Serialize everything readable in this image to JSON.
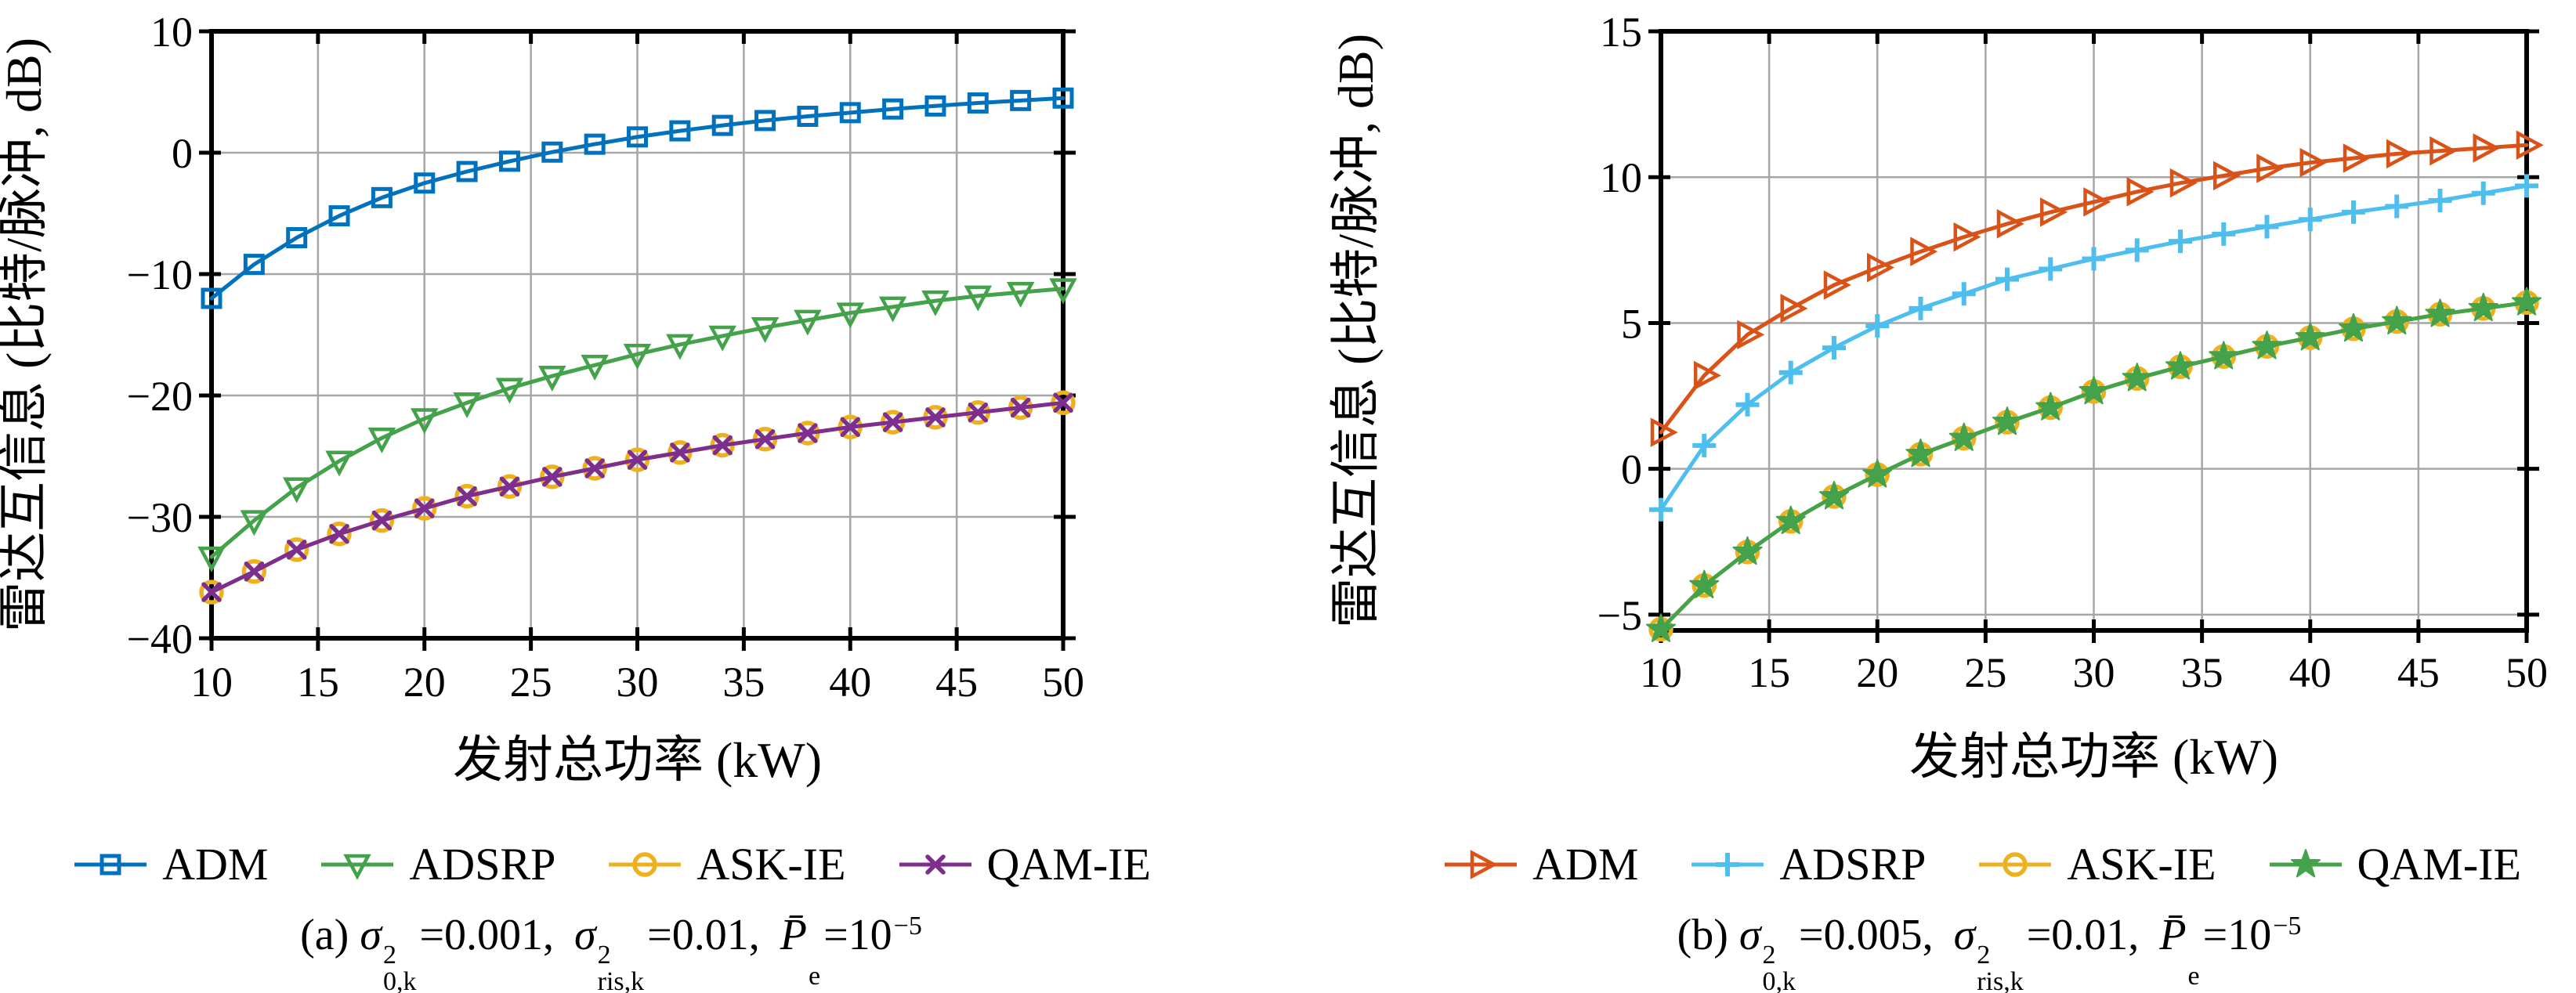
{
  "figure": {
    "background": "#ffffff"
  },
  "axis_labels": {
    "xlabel": "发射总功率 (kW)",
    "ylabel": "雷达互信息 (比特/脉冲, dB)"
  },
  "colors": {
    "grid": "#a6a6a6",
    "border": "#000000",
    "blue": "#0072BD",
    "green": "#44A24B",
    "yellow": "#EDB120",
    "purple": "#7E2F8E",
    "orange": "#D95319",
    "cyan": "#4DBEEE"
  },
  "chart_data": [
    {
      "id": "a",
      "type": "line",
      "title": "",
      "xlabel": "发射总功率 (kW)",
      "ylabel": "雷达互信息 (比特/脉冲, dB)",
      "xlim": [
        10,
        50
      ],
      "ylim": [
        -40,
        10
      ],
      "grid": true,
      "legend_position": "below",
      "xticks": [
        10,
        15,
        20,
        25,
        30,
        35,
        40,
        45,
        50
      ],
      "xtick_labels": [
        "10",
        "15",
        "20",
        "25",
        "30",
        "35",
        "40",
        "45",
        "50"
      ],
      "yticks": [
        -40,
        -30,
        -20,
        -10,
        0,
        10
      ],
      "ytick_labels": [
        "−40",
        "−30",
        "−20",
        "−10",
        "0",
        "10"
      ],
      "x": [
        10,
        12,
        14,
        16,
        18,
        20,
        22,
        24,
        26,
        28,
        30,
        32,
        34,
        36,
        38,
        40,
        42,
        44,
        46,
        48,
        50
      ],
      "series": [
        {
          "name": "ADM",
          "color": "#0072BD",
          "marker": "square",
          "values": [
            -12.0,
            -9.2,
            -7.0,
            -5.2,
            -3.7,
            -2.5,
            -1.55,
            -0.7,
            0.05,
            0.7,
            1.3,
            1.8,
            2.25,
            2.65,
            3.0,
            3.3,
            3.6,
            3.85,
            4.1,
            4.3,
            4.5
          ]
        },
        {
          "name": "ADSRP",
          "color": "#44A24B",
          "marker": "triangle-down",
          "values": [
            -33.3,
            -30.3,
            -27.6,
            -25.4,
            -23.5,
            -21.9,
            -20.6,
            -19.4,
            -18.4,
            -17.5,
            -16.6,
            -15.8,
            -15.1,
            -14.4,
            -13.8,
            -13.2,
            -12.7,
            -12.2,
            -11.8,
            -11.5,
            -11.2
          ]
        },
        {
          "name": "ASK-IE",
          "color": "#EDB120",
          "marker": "circle",
          "values": [
            -36.2,
            -34.5,
            -32.7,
            -31.4,
            -30.3,
            -29.3,
            -28.3,
            -27.5,
            -26.7,
            -26.0,
            -25.3,
            -24.7,
            -24.1,
            -23.6,
            -23.1,
            -22.6,
            -22.2,
            -21.8,
            -21.4,
            -21.0,
            -20.6
          ]
        },
        {
          "name": "QAM-IE",
          "color": "#7E2F8E",
          "marker": "x",
          "values": [
            -36.2,
            -34.5,
            -32.7,
            -31.4,
            -30.3,
            -29.3,
            -28.3,
            -27.5,
            -26.7,
            -26.0,
            -25.3,
            -24.7,
            -24.1,
            -23.6,
            -23.1,
            -22.6,
            -22.2,
            -21.8,
            -21.4,
            -21.0,
            -20.6
          ]
        }
      ],
      "caption": {
        "prefix": "(a) ",
        "groups": [
          {
            "base": "σ",
            "sup": "2",
            "sub": "0,k",
            "tail": "=0.001,",
            "tail_sup": ""
          },
          {
            "base": "σ",
            "sup": "2",
            "sub": "ris,k",
            "tail": "=0.01,",
            "tail_sup": ""
          },
          {
            "base": "P̄",
            "sup": "",
            "sub": "e",
            "tail": "=10",
            "tail_sup": "−5"
          }
        ]
      }
    },
    {
      "id": "b",
      "type": "line",
      "title": "",
      "xlabel": "发射总功率 (kW)",
      "ylabel": "雷达互信息 (比特/脉冲, dB)",
      "xlim": [
        10,
        50
      ],
      "ylim": [
        -5.54,
        15
      ],
      "grid": true,
      "legend_position": "below",
      "xticks": [
        10,
        15,
        20,
        25,
        30,
        35,
        40,
        45,
        50
      ],
      "xtick_labels": [
        "10",
        "15",
        "20",
        "25",
        "30",
        "35",
        "40",
        "45",
        "50"
      ],
      "yticks": [
        -5,
        0,
        5,
        10,
        15
      ],
      "ytick_labels": [
        "−5",
        "0",
        "5",
        "10",
        "15"
      ],
      "x": [
        10,
        12,
        14,
        16,
        18,
        20,
        22,
        24,
        26,
        28,
        30,
        32,
        34,
        36,
        38,
        40,
        42,
        44,
        46,
        48,
        50
      ],
      "series": [
        {
          "name": "ADM",
          "color": "#D95319",
          "marker": "triangle-right",
          "values": [
            1.25,
            3.2,
            4.6,
            5.5,
            6.3,
            6.9,
            7.45,
            7.95,
            8.4,
            8.8,
            9.15,
            9.5,
            9.8,
            10.05,
            10.3,
            10.5,
            10.65,
            10.8,
            10.9,
            11.0,
            11.1
          ]
        },
        {
          "name": "ADSRP",
          "color": "#4DBEEE",
          "marker": "plus",
          "values": [
            -1.4,
            0.8,
            2.2,
            3.3,
            4.15,
            4.9,
            5.5,
            6.0,
            6.5,
            6.85,
            7.2,
            7.5,
            7.8,
            8.05,
            8.3,
            8.55,
            8.8,
            9.0,
            9.2,
            9.45,
            9.7
          ]
        },
        {
          "name": "ASK-IE",
          "color": "#EDB120",
          "marker": "circle",
          "values": [
            -5.5,
            -4.0,
            -2.85,
            -1.8,
            -0.95,
            -0.2,
            0.5,
            1.05,
            1.6,
            2.1,
            2.65,
            3.1,
            3.5,
            3.85,
            4.2,
            4.5,
            4.8,
            5.05,
            5.3,
            5.5,
            5.7
          ]
        },
        {
          "name": "QAM-IE",
          "color": "#44A24B",
          "marker": "star",
          "values": [
            -5.5,
            -4.0,
            -2.85,
            -1.8,
            -0.95,
            -0.2,
            0.5,
            1.05,
            1.6,
            2.1,
            2.65,
            3.1,
            3.5,
            3.85,
            4.2,
            4.5,
            4.8,
            5.05,
            5.3,
            5.5,
            5.7
          ]
        }
      ],
      "caption": {
        "prefix": "(b) ",
        "groups": [
          {
            "base": "σ",
            "sup": "2",
            "sub": "0,k",
            "tail": "=0.005,",
            "tail_sup": ""
          },
          {
            "base": "σ",
            "sup": "2",
            "sub": "ris,k",
            "tail": "=0.01,",
            "tail_sup": ""
          },
          {
            "base": "P̄",
            "sup": "",
            "sub": "e",
            "tail": "=10",
            "tail_sup": "−5"
          }
        ]
      }
    }
  ]
}
